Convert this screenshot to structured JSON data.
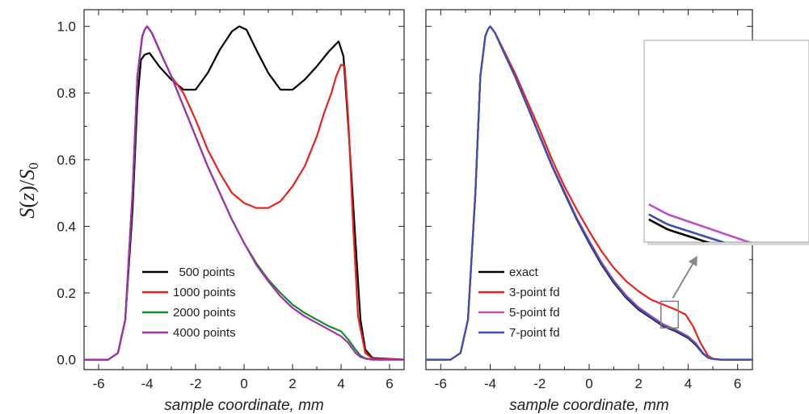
{
  "chart_data": [
    {
      "type": "line",
      "xlabel": "sample coordinate, mm",
      "ylabel": "S(z)/S0",
      "ylabel_parts": [
        "S",
        "(",
        "z",
        ")",
        "/",
        "S",
        "0"
      ],
      "xlim": [
        -6.6,
        6.6
      ],
      "ylim": [
        -0.03,
        1.05
      ],
      "xticks": [
        -6,
        -4,
        -2,
        0,
        2,
        4,
        6
      ],
      "yticks": [
        "0.0",
        "0.2",
        "0.4",
        "0.6",
        "0.8",
        "1.0"
      ],
      "legend_position": "bottom-center",
      "series": [
        {
          "name": "500 points",
          "color": "#000000",
          "x": [
            -6.6,
            -5.6,
            -5.2,
            -4.9,
            -4.6,
            -4.4,
            -4.25,
            -4.1,
            -3.9,
            -3.5,
            -3.0,
            -2.5,
            -2.0,
            -1.5,
            -1.0,
            -0.5,
            -0.2,
            0.1,
            0.5,
            1.0,
            1.5,
            2.0,
            2.5,
            3.0,
            3.5,
            3.9,
            4.1,
            4.3,
            4.6,
            4.8,
            5.0,
            5.3,
            6.6
          ],
          "y": [
            0.0,
            0.0,
            0.02,
            0.12,
            0.45,
            0.78,
            0.9,
            0.915,
            0.92,
            0.88,
            0.84,
            0.81,
            0.81,
            0.86,
            0.93,
            0.985,
            1.0,
            0.99,
            0.93,
            0.86,
            0.81,
            0.81,
            0.84,
            0.88,
            0.925,
            0.955,
            0.91,
            0.7,
            0.35,
            0.12,
            0.03,
            0.005,
            0.0
          ]
        },
        {
          "name": "1000 points",
          "color": "#e8231b",
          "x": [
            -6.6,
            -5.6,
            -5.2,
            -4.9,
            -4.6,
            -4.4,
            -4.2,
            -4.1,
            -4.0,
            -3.8,
            -3.5,
            -3.0,
            -2.5,
            -2.0,
            -1.5,
            -1.0,
            -0.5,
            0.0,
            0.5,
            1.0,
            1.5,
            2.0,
            2.5,
            3.0,
            3.3,
            3.6,
            3.8,
            4.0,
            4.15,
            4.3,
            4.5,
            4.7,
            5.0,
            5.3,
            6.6
          ],
          "y": [
            0.0,
            0.0,
            0.02,
            0.12,
            0.5,
            0.85,
            0.97,
            0.99,
            1.0,
            0.98,
            0.93,
            0.85,
            0.8,
            0.72,
            0.63,
            0.56,
            0.5,
            0.47,
            0.455,
            0.455,
            0.475,
            0.52,
            0.58,
            0.67,
            0.74,
            0.8,
            0.85,
            0.885,
            0.88,
            0.72,
            0.4,
            0.13,
            0.02,
            0.003,
            0.0
          ]
        },
        {
          "name": "2000 points",
          "color": "#1a8a2a",
          "x": [
            -6.6,
            -5.6,
            -5.2,
            -4.9,
            -4.6,
            -4.4,
            -4.2,
            -4.1,
            -4.0,
            -3.8,
            -3.5,
            -3.0,
            -2.5,
            -2.0,
            -1.5,
            -1.0,
            -0.5,
            0.0,
            0.5,
            1.0,
            1.5,
            2.0,
            2.5,
            3.0,
            3.5,
            4.0,
            4.3,
            4.6,
            4.8,
            5.0,
            5.3,
            6.6
          ],
          "y": [
            0.0,
            0.0,
            0.02,
            0.12,
            0.5,
            0.85,
            0.97,
            0.99,
            1.0,
            0.98,
            0.93,
            0.85,
            0.76,
            0.67,
            0.58,
            0.5,
            0.42,
            0.35,
            0.29,
            0.24,
            0.2,
            0.165,
            0.14,
            0.12,
            0.1,
            0.085,
            0.06,
            0.03,
            0.012,
            0.004,
            0.0,
            0.0
          ]
        },
        {
          "name": "4000 points",
          "color": "#a030b0",
          "x": [
            -6.6,
            -5.6,
            -5.2,
            -4.9,
            -4.6,
            -4.4,
            -4.2,
            -4.1,
            -4.0,
            -3.8,
            -3.5,
            -3.0,
            -2.5,
            -2.0,
            -1.5,
            -1.0,
            -0.5,
            0.0,
            0.5,
            1.0,
            1.5,
            2.0,
            2.5,
            3.0,
            3.5,
            4.0,
            4.3,
            4.6,
            4.8,
            5.0,
            5.3,
            6.6
          ],
          "y": [
            0.0,
            0.0,
            0.02,
            0.12,
            0.5,
            0.85,
            0.97,
            0.99,
            1.0,
            0.98,
            0.93,
            0.85,
            0.76,
            0.67,
            0.58,
            0.5,
            0.42,
            0.35,
            0.285,
            0.235,
            0.19,
            0.155,
            0.13,
            0.11,
            0.09,
            0.07,
            0.05,
            0.02,
            0.008,
            0.003,
            0.0,
            0.0
          ]
        }
      ]
    },
    {
      "type": "line",
      "xlabel": "sample coordinate, mm",
      "ylabel": "",
      "xlim": [
        -6.6,
        6.6
      ],
      "ylim": [
        -0.03,
        1.05
      ],
      "xticks": [
        -6,
        -4,
        -2,
        0,
        2,
        4,
        6
      ],
      "yticks": [],
      "legend_position": "bottom-center",
      "series": [
        {
          "name": "exact",
          "color": "#000000",
          "x": [
            -6.6,
            -5.6,
            -5.2,
            -4.9,
            -4.6,
            -4.4,
            -4.2,
            -4.1,
            -4.0,
            -3.8,
            -3.5,
            -3.0,
            -2.5,
            -2.0,
            -1.5,
            -1.0,
            -0.5,
            0.0,
            0.5,
            1.0,
            1.5,
            2.0,
            2.5,
            3.0,
            3.5,
            4.0,
            4.3,
            4.6,
            4.8,
            5.0,
            5.3,
            6.6
          ],
          "y": [
            0.0,
            0.0,
            0.02,
            0.12,
            0.5,
            0.85,
            0.97,
            0.99,
            1.0,
            0.98,
            0.93,
            0.85,
            0.76,
            0.67,
            0.58,
            0.5,
            0.42,
            0.35,
            0.285,
            0.23,
            0.185,
            0.15,
            0.125,
            0.1,
            0.085,
            0.065,
            0.045,
            0.018,
            0.006,
            0.002,
            0.0,
            0.0
          ]
        },
        {
          "name": "3-point fd",
          "color": "#e8231b",
          "x": [
            -6.6,
            -5.6,
            -5.2,
            -4.9,
            -4.6,
            -4.4,
            -4.2,
            -4.1,
            -4.0,
            -3.8,
            -3.5,
            -3.0,
            -2.5,
            -2.0,
            -1.5,
            -1.0,
            -0.5,
            0.0,
            0.5,
            1.0,
            1.5,
            2.0,
            2.5,
            3.0,
            3.5,
            3.9,
            4.2,
            4.5,
            4.8,
            5.0,
            5.3,
            6.6
          ],
          "y": [
            0.0,
            0.0,
            0.02,
            0.12,
            0.5,
            0.85,
            0.97,
            0.99,
            1.0,
            0.98,
            0.935,
            0.86,
            0.775,
            0.69,
            0.6,
            0.52,
            0.45,
            0.385,
            0.325,
            0.275,
            0.235,
            0.205,
            0.18,
            0.165,
            0.15,
            0.135,
            0.1,
            0.05,
            0.012,
            0.003,
            0.0,
            0.0
          ]
        },
        {
          "name": "5-point fd",
          "color": "#c050c0",
          "x": [
            -6.6,
            -5.6,
            -5.2,
            -4.9,
            -4.6,
            -4.4,
            -4.2,
            -4.1,
            -4.0,
            -3.8,
            -3.5,
            -3.0,
            -2.5,
            -2.0,
            -1.5,
            -1.0,
            -0.5,
            0.0,
            0.5,
            1.0,
            1.5,
            2.0,
            2.5,
            3.0,
            3.5,
            4.0,
            4.3,
            4.6,
            4.8,
            5.0,
            5.3,
            6.6
          ],
          "y": [
            0.0,
            0.0,
            0.02,
            0.12,
            0.5,
            0.85,
            0.97,
            0.99,
            1.0,
            0.98,
            0.93,
            0.85,
            0.762,
            0.673,
            0.584,
            0.505,
            0.425,
            0.357,
            0.292,
            0.237,
            0.192,
            0.157,
            0.131,
            0.106,
            0.09,
            0.07,
            0.05,
            0.02,
            0.007,
            0.002,
            0.0,
            0.0
          ]
        },
        {
          "name": "7-point fd",
          "color": "#3a4fb0",
          "x": [
            -6.6,
            -5.6,
            -5.2,
            -4.9,
            -4.6,
            -4.4,
            -4.2,
            -4.1,
            -4.0,
            -3.8,
            -3.5,
            -3.0,
            -2.5,
            -2.0,
            -1.5,
            -1.0,
            -0.5,
            0.0,
            0.5,
            1.0,
            1.5,
            2.0,
            2.5,
            3.0,
            3.5,
            4.0,
            4.3,
            4.6,
            4.8,
            5.0,
            5.3,
            6.6
          ],
          "y": [
            0.0,
            0.0,
            0.02,
            0.12,
            0.5,
            0.85,
            0.97,
            0.99,
            1.0,
            0.98,
            0.93,
            0.85,
            0.761,
            0.671,
            0.581,
            0.502,
            0.422,
            0.353,
            0.288,
            0.233,
            0.188,
            0.153,
            0.127,
            0.102,
            0.087,
            0.067,
            0.047,
            0.019,
            0.006,
            0.002,
            0.0,
            0.0
          ]
        }
      ],
      "inset": {
        "region_x": [
          2.9,
          3.6
        ],
        "region_y": [
          0.095,
          0.175
        ]
      }
    }
  ]
}
